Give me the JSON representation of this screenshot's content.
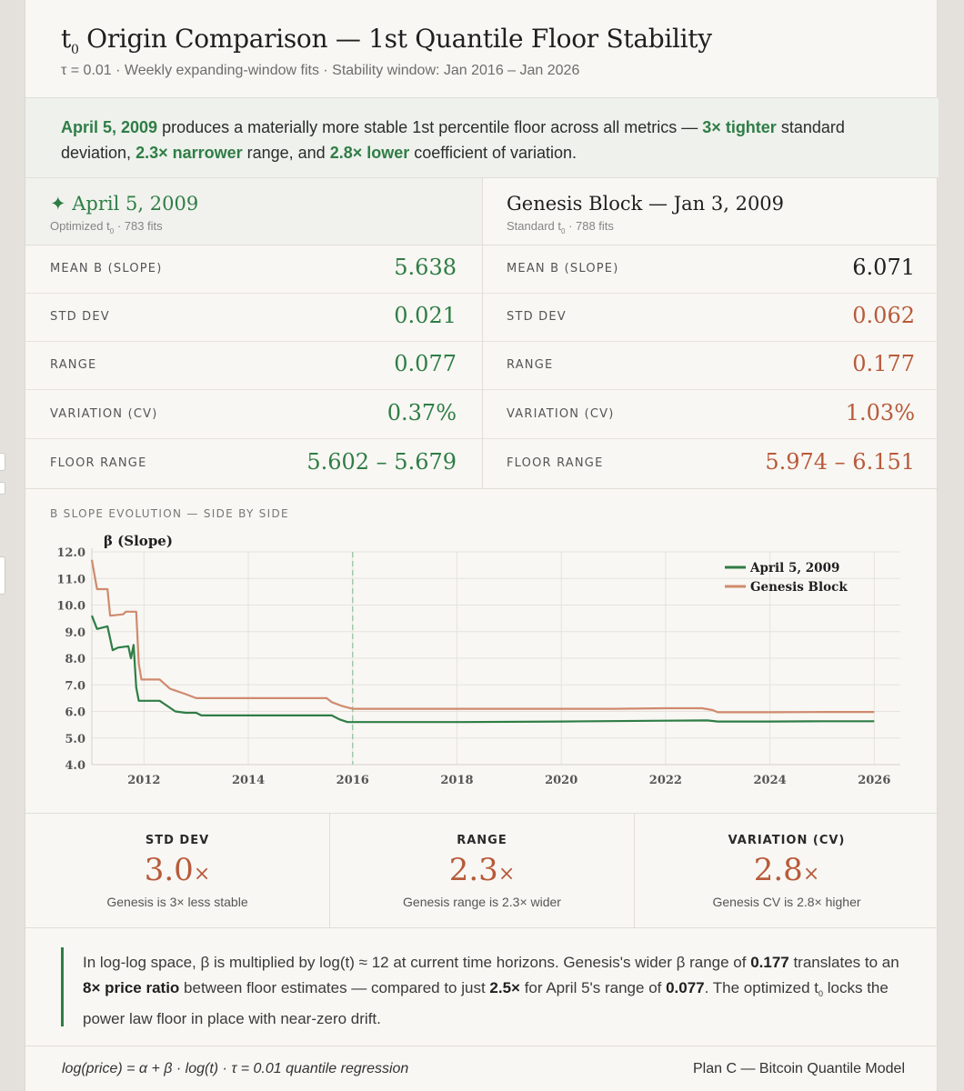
{
  "header": {
    "title_main": "t",
    "title_sub": "0",
    "title_rest": " Origin Comparison — 1st Quantile Floor Stability",
    "subtitle": "τ = 0.01 · Weekly expanding-window fits · Stability window: Jan 2016 – Jan 2026"
  },
  "summary": {
    "p1": "April 5, 2009",
    "p2": " produces a materially more stable 1st percentile floor across all metrics — ",
    "p3": "3× tighter",
    "p4": " standard deviation, ",
    "p5": "2.3× narrower",
    "p6": " range, and ",
    "p7": "2.8× lower",
    "p8": " coefficient of variation."
  },
  "panels": {
    "left": {
      "name": "✦ April 5, 2009",
      "sub_a": "Optimized t",
      "sub_b": "0",
      "sub_c": " · 783 fits",
      "rows": [
        {
          "label": "MEAN B (SLOPE)",
          "value": "5.638"
        },
        {
          "label": "STD DEV",
          "value": "0.021"
        },
        {
          "label": "RANGE",
          "value": "0.077"
        },
        {
          "label": "VARIATION (CV)",
          "value": "0.37%"
        },
        {
          "label": "FLOOR RANGE",
          "value": "5.602 – 5.679"
        }
      ]
    },
    "right": {
      "name": "Genesis Block — Jan 3, 2009",
      "sub_a": "Standard t",
      "sub_b": "0",
      "sub_c": " · 788 fits",
      "rows": [
        {
          "label": "MEAN B (SLOPE)",
          "value": "6.071"
        },
        {
          "label": "STD DEV",
          "value": "0.062"
        },
        {
          "label": "RANGE",
          "value": "0.177"
        },
        {
          "label": "VARIATION (CV)",
          "value": "1.03%"
        },
        {
          "label": "FLOOR RANGE",
          "value": "5.974 – 6.151"
        }
      ]
    }
  },
  "chart": {
    "caption": "B SLOPE EVOLUTION — SIDE BY SIDE"
  },
  "chart_data": {
    "type": "line",
    "title": "",
    "ylabel": "β (Slope)",
    "xlabel": "",
    "xlim": [
      2011.0,
      2026.5
    ],
    "ylim": [
      4.0,
      12.0
    ],
    "yticks": [
      4.0,
      5.0,
      6.0,
      7.0,
      8.0,
      9.0,
      10.0,
      11.0,
      12.0
    ],
    "xticks": [
      2012,
      2014,
      2016,
      2018,
      2020,
      2022,
      2024,
      2026
    ],
    "grid": true,
    "legend_position": "top-right",
    "reference_line_x": 2016.0,
    "series": [
      {
        "name": "April 5, 2009",
        "color": "#2f7d46",
        "points": [
          [
            2011.0,
            9.6
          ],
          [
            2011.1,
            9.1
          ],
          [
            2011.3,
            9.2
          ],
          [
            2011.4,
            8.3
          ],
          [
            2011.5,
            8.4
          ],
          [
            2011.7,
            8.45
          ],
          [
            2011.75,
            8.0
          ],
          [
            2011.8,
            8.5
          ],
          [
            2011.85,
            6.9
          ],
          [
            2011.9,
            6.4
          ],
          [
            2012.3,
            6.4
          ],
          [
            2012.6,
            6.0
          ],
          [
            2012.8,
            5.95
          ],
          [
            2013.0,
            5.95
          ],
          [
            2013.1,
            5.85
          ],
          [
            2014.0,
            5.85
          ],
          [
            2015.0,
            5.85
          ],
          [
            2015.6,
            5.85
          ],
          [
            2015.75,
            5.7
          ],
          [
            2015.9,
            5.6
          ],
          [
            2018.0,
            5.6
          ],
          [
            2020.0,
            5.62
          ],
          [
            2022.0,
            5.65
          ],
          [
            2022.8,
            5.66
          ],
          [
            2023.0,
            5.62
          ],
          [
            2024.0,
            5.62
          ],
          [
            2025.0,
            5.63
          ],
          [
            2026.0,
            5.63
          ]
        ]
      },
      {
        "name": "Genesis Block",
        "color": "#d08a6e",
        "points": [
          [
            2011.0,
            11.7
          ],
          [
            2011.1,
            10.6
          ],
          [
            2011.3,
            10.6
          ],
          [
            2011.35,
            9.6
          ],
          [
            2011.6,
            9.65
          ],
          [
            2011.65,
            9.75
          ],
          [
            2011.85,
            9.75
          ],
          [
            2011.9,
            7.8
          ],
          [
            2011.95,
            7.2
          ],
          [
            2012.3,
            7.2
          ],
          [
            2012.5,
            6.85
          ],
          [
            2012.8,
            6.65
          ],
          [
            2013.0,
            6.5
          ],
          [
            2014.0,
            6.5
          ],
          [
            2015.0,
            6.5
          ],
          [
            2015.5,
            6.5
          ],
          [
            2015.6,
            6.35
          ],
          [
            2015.8,
            6.2
          ],
          [
            2016.0,
            6.1
          ],
          [
            2018.0,
            6.1
          ],
          [
            2020.0,
            6.1
          ],
          [
            2021.0,
            6.1
          ],
          [
            2022.0,
            6.12
          ],
          [
            2022.7,
            6.12
          ],
          [
            2022.9,
            6.05
          ],
          [
            2023.0,
            5.97
          ],
          [
            2024.0,
            5.97
          ],
          [
            2025.0,
            5.98
          ],
          [
            2026.0,
            5.98
          ]
        ]
      }
    ]
  },
  "stats": [
    {
      "label": "STD DEV",
      "value": "3.0",
      "suffix": "×",
      "note": "Genesis is 3× less stable"
    },
    {
      "label": "RANGE",
      "value": "2.3",
      "suffix": "×",
      "note": "Genesis range is 2.3× wider"
    },
    {
      "label": "VARIATION (CV)",
      "value": "2.8",
      "suffix": "×",
      "note": "Genesis CV is 2.8× higher"
    }
  ],
  "note": {
    "s1": "In log-log space, β is multiplied by log(t) ≈ 12 at current time horizons. Genesis's wider β range of ",
    "b1": "0.177",
    "s2": " translates to an ",
    "b2": "8× price ratio",
    "s3": " between floor estimates — compared to just ",
    "b3": "2.5×",
    "s4": " for April 5's range of ",
    "b4": "0.077",
    "s5": ". The optimized t",
    "sub": "0",
    "s6": " locks the power law floor in place with near-zero drift."
  },
  "footer": {
    "formula": "log(price) = α + β · log(t) · τ = 0.01 quantile regression",
    "credit": "Plan C — Bitcoin Quantile Model"
  }
}
